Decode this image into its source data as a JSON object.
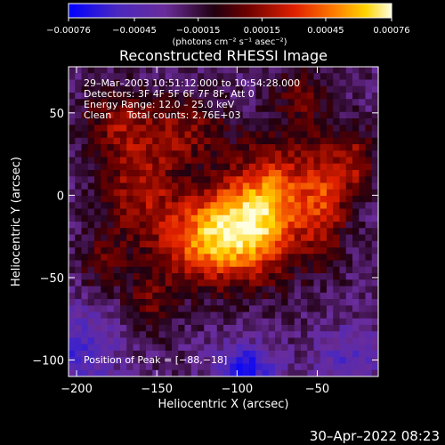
{
  "chart_data": {
    "type": "heatmap",
    "title": "Reconstructed RHESSI Image",
    "xlabel": "Heliocentric X (arcsec)",
    "ylabel": "Heliocentric Y (arcsec)",
    "xlim": [
      -205,
      -12
    ],
    "ylim": [
      -110,
      78
    ],
    "x_ticks": [
      -200,
      -150,
      -100,
      -50
    ],
    "x_tick_labels": [
      "−200",
      "−150",
      "−100",
      "−50"
    ],
    "y_ticks": [
      -100,
      -50,
      0,
      50
    ],
    "y_tick_labels": [
      "−100",
      "−50",
      "0",
      "50"
    ],
    "colorbar": {
      "range": [
        -0.00076,
        0.00076
      ],
      "ticks": [
        -0.00076,
        -0.00045,
        -0.00015,
        0.00015,
        0.00045,
        0.00076
      ],
      "tick_labels": [
        "−0.00076",
        "−0.00045",
        "−0.00015",
        "0.00015",
        "0.00045",
        "0.00076"
      ],
      "units": "(photons cm⁻² s⁻¹ asec⁻²)",
      "colormap": [
        "#0000ff",
        "#5b2ca8",
        "#000000",
        "#b01a0a",
        "#ff5500",
        "#ffcc00",
        "#ffffcc"
      ]
    },
    "annotations": {
      "time": "29–Mar–2003 10:51:12.000 to 10:54:28.000",
      "detectors": "Detectors: 3F 4F 5F 6F 7F 8F, Att 0",
      "energy": "Energy Range: 12.0 – 25.0 keV",
      "clean": "Clean     Total counts: 2.76E+03",
      "peak": "Position of Peak = [−88,−18]"
    },
    "peak": [
      -88,
      -18
    ],
    "sources": [
      {
        "x": -90,
        "y": -18,
        "amp": 0.00076,
        "sx": 22,
        "sy": 22
      },
      {
        "x": -120,
        "y": -28,
        "amp": 0.00055,
        "sx": 20,
        "sy": 18
      },
      {
        "x": -75,
        "y": 10,
        "amp": 0.00035,
        "sx": 16,
        "sy": 20
      },
      {
        "x": -160,
        "y": 5,
        "amp": 0.0004,
        "sx": 18,
        "sy": 25
      },
      {
        "x": -45,
        "y": 0,
        "amp": 0.00045,
        "sx": 10,
        "sy": 25
      },
      {
        "x": -25,
        "y": 20,
        "amp": 0.00035,
        "sx": 8,
        "sy": 15
      },
      {
        "x": -130,
        "y": 40,
        "amp": 0.0003,
        "sx": 18,
        "sy": 14
      },
      {
        "x": -175,
        "y": 45,
        "amp": 0.00028,
        "sx": 15,
        "sy": 14
      },
      {
        "x": -60,
        "y": 60,
        "amp": 0.00025,
        "sx": 12,
        "sy": 12
      },
      {
        "x": -155,
        "y": -65,
        "amp": 0.00025,
        "sx": 12,
        "sy": 14
      },
      {
        "x": -185,
        "y": -40,
        "amp": 0.00022,
        "sx": 10,
        "sy": 12
      },
      {
        "x": -95,
        "y": -105,
        "amp": -0.00045,
        "sx": 14,
        "sy": 10
      },
      {
        "x": -200,
        "y": -95,
        "amp": -0.0003,
        "sx": 18,
        "sy": 18
      },
      {
        "x": -30,
        "y": -100,
        "amp": -0.00025,
        "sx": 14,
        "sy": 14
      }
    ]
  },
  "footer": {
    "date": "30–Apr–2022 08:23"
  }
}
